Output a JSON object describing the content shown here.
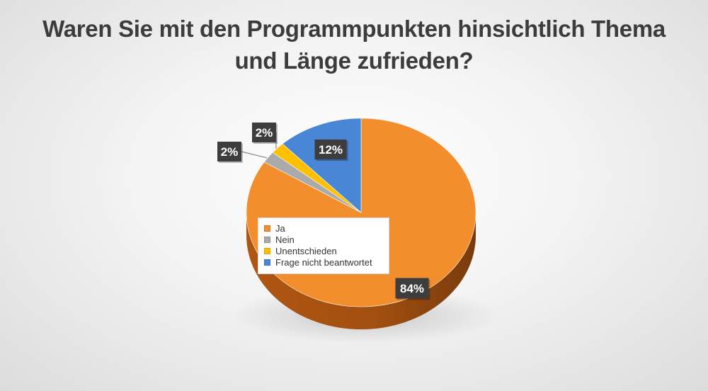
{
  "chart_data": {
    "type": "pie",
    "title": "Waren Sie mit den Programmpunkten hinsichtlich Thema und Länge zufrieden?",
    "title_lines": [
      "Waren Sie mit den Programmpunkten hinsichtlich Thema",
      "und Länge zufrieden?"
    ],
    "categories": [
      "Ja",
      "Nein",
      "Unentschieden",
      "Frage nicht beantwortet"
    ],
    "values": [
      84,
      2,
      2,
      12
    ],
    "labels": [
      "84%",
      "2%",
      "2%",
      "12%"
    ],
    "colors": [
      "#F28E2B",
      "#AAAAAA",
      "#FFC000",
      "#4A86D6"
    ],
    "side_colors": [
      "#B95A12",
      "#7E7E7E",
      "#C29200",
      "#2F5E9E"
    ],
    "legend_position": "left-center",
    "style": "3d-pie"
  }
}
